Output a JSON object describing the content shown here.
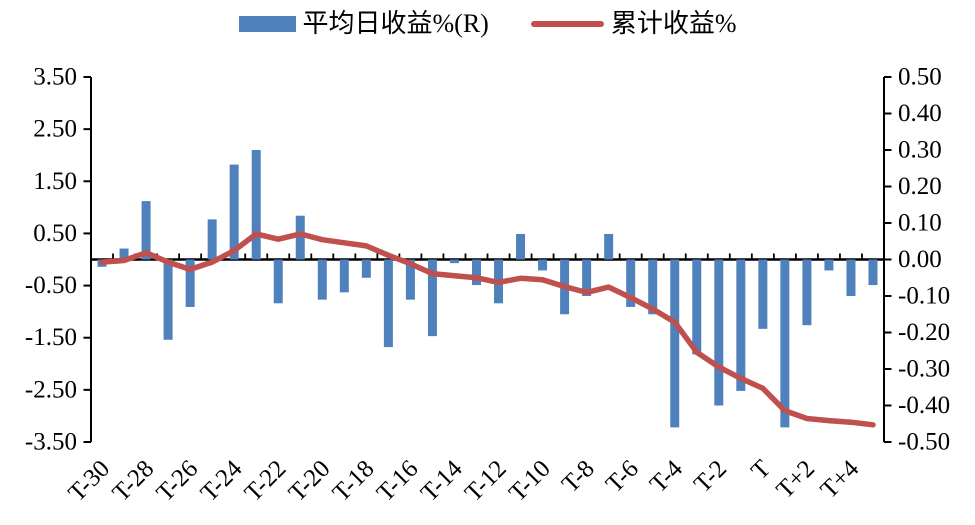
{
  "colors": {
    "bar": "#4F81BD",
    "line": "#C0504D",
    "axis": "#000000",
    "text": "#000000",
    "background": "#FFFFFF"
  },
  "chart_data": {
    "type": "bar+line combo",
    "title": "",
    "legend_position": "top",
    "grid": false,
    "categories": [
      "T-30",
      "T-29",
      "T-28",
      "T-27",
      "T-26",
      "T-25",
      "T-24",
      "T-23",
      "T-22",
      "T-21",
      "T-20",
      "T-19",
      "T-18",
      "T-17",
      "T-16",
      "T-15",
      "T-14",
      "T-13",
      "T-12",
      "T-11",
      "T-10",
      "T-9",
      "T-8",
      "T-7",
      "T-6",
      "T-5",
      "T-4",
      "T-3",
      "T-2",
      "T-1",
      "T",
      "T+1",
      "T+2",
      "T+3",
      "T+4",
      "T+5"
    ],
    "series": [
      {
        "name": "平均日收益%(R)",
        "type": "bar",
        "axis": "right",
        "values": [
          -0.02,
          0.03,
          0.16,
          -0.22,
          -0.13,
          0.11,
          0.26,
          0.3,
          -0.12,
          0.12,
          -0.11,
          -0.09,
          -0.05,
          -0.24,
          -0.11,
          -0.21,
          -0.01,
          -0.07,
          -0.12,
          0.07,
          -0.03,
          -0.15,
          -0.1,
          0.07,
          -0.13,
          -0.15,
          -0.46,
          -0.26,
          -0.4,
          -0.36,
          -0.19,
          -0.46,
          -0.18,
          -0.03,
          -0.1,
          -0.07
        ]
      },
      {
        "name": "累计收益%",
        "type": "line",
        "axis": "left",
        "values": [
          -0.05,
          -0.02,
          0.13,
          -0.05,
          -0.19,
          -0.05,
          0.17,
          0.49,
          0.39,
          0.49,
          0.38,
          0.32,
          0.26,
          0.08,
          -0.08,
          -0.27,
          -0.31,
          -0.35,
          -0.44,
          -0.36,
          -0.39,
          -0.52,
          -0.63,
          -0.53,
          -0.73,
          -0.95,
          -1.2,
          -1.78,
          -2.06,
          -2.28,
          -2.47,
          -2.9,
          -3.05,
          -3.09,
          -3.12,
          -3.17
        ]
      }
    ],
    "left_axis": {
      "min": -3.5,
      "max": 3.5,
      "step": 1.0,
      "tick_labels": [
        "3.50",
        "2.50",
        "1.50",
        "0.50",
        "-0.50",
        "-1.50",
        "-2.50",
        "-3.50"
      ]
    },
    "right_axis": {
      "min": -0.5,
      "max": 0.5,
      "step": 0.1,
      "tick_labels": [
        "0.50",
        "0.40",
        "0.30",
        "0.20",
        "0.10",
        "0.00",
        "-0.10",
        "-0.20",
        "-0.30",
        "-0.40",
        "-0.50"
      ]
    },
    "x_axis": {
      "label_every": 2,
      "shown_tick_labels": [
        "T-30",
        "T-28",
        "T-26",
        "T-24",
        "T-22",
        "T-20",
        "T-18",
        "T-16",
        "T-14",
        "T-12",
        "T-10",
        "T-8",
        "T-6",
        "T-4",
        "T-2",
        "T",
        "T+2",
        "T+4"
      ]
    }
  }
}
